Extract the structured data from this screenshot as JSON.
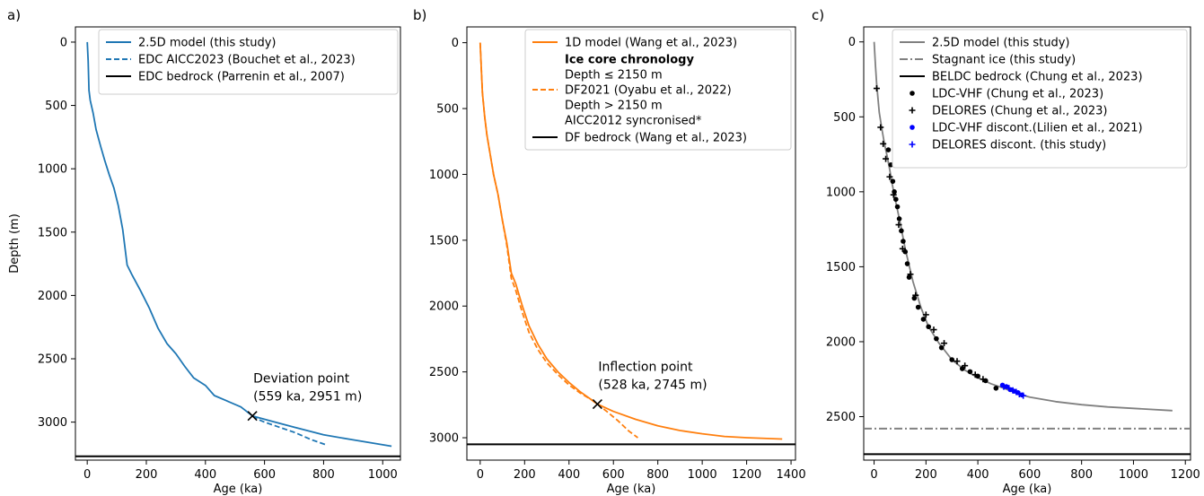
{
  "figure": {
    "colors": {
      "blue": "#1f77b4",
      "orange": "#ff7f0e",
      "gray": "#808080",
      "black": "#000000",
      "pure_blue": "#0000ff"
    }
  },
  "chart_data": [
    {
      "panel": "a)",
      "type": "line",
      "xlabel": "Age (ka)",
      "ylabel": "Depth (m)",
      "xlim": [
        -40,
        1060
      ],
      "ylim": [
        3300,
        -120
      ],
      "xticks": [
        0,
        200,
        400,
        600,
        800,
        1000
      ],
      "yticks": [
        0,
        500,
        1000,
        1500,
        2000,
        2500,
        3000
      ],
      "legend_position": "top-right",
      "series": [
        {
          "name": "2.5D model (this study)",
          "style": "solid",
          "color": "#1f77b4",
          "x": [
            0,
            3,
            6,
            10,
            20,
            30,
            45,
            60,
            75,
            90,
            105,
            120,
            135,
            150,
            180,
            210,
            240,
            270,
            300,
            330,
            360,
            400,
            430,
            470,
            520,
            559,
            620,
            700,
            800,
            900,
            1030
          ],
          "y": [
            0,
            150,
            380,
            460,
            560,
            690,
            820,
            940,
            1050,
            1150,
            1290,
            1480,
            1760,
            1830,
            1960,
            2100,
            2260,
            2380,
            2460,
            2560,
            2650,
            2710,
            2790,
            2830,
            2880,
            2951,
            2990,
            3040,
            3100,
            3140,
            3190
          ]
        },
        {
          "name": "EDC AICC2023 (Bouchet et al., 2023)",
          "style": "dashed",
          "color": "#1f77b4",
          "x": [
            559,
            580,
            600,
            650,
            700,
            760,
            810
          ],
          "y": [
            2951,
            2980,
            3000,
            3040,
            3080,
            3140,
            3180
          ]
        },
        {
          "name": "EDC bedrock (Parrenin et al., 2007)",
          "style": "hline",
          "color": "#000000",
          "y": 3270
        }
      ],
      "marker": {
        "x": 559,
        "y": 2951,
        "symbol": "x"
      },
      "annotation": {
        "line1": "Deviation point",
        "line2": "(559 ka, 2951 m)"
      }
    },
    {
      "panel": "b)",
      "type": "line",
      "xlabel": "Age (ka)",
      "ylabel": "",
      "xlim": [
        -60,
        1420
      ],
      "ylim": [
        3170,
        -120
      ],
      "xticks": [
        0,
        200,
        400,
        600,
        800,
        1000,
        1200,
        1400
      ],
      "yticks": [
        0,
        500,
        1000,
        1500,
        2000,
        2500,
        3000
      ],
      "legend_position": "top-right",
      "legend_heading": "Ice core chronology",
      "legend_text": [
        "Depth ≤ 2150 m",
        "Depth > 2150 m",
        "AICC2012 syncronised*"
      ],
      "series": [
        {
          "name": "1D model (Wang et al., 2023)",
          "style": "solid",
          "color": "#ff7f0e",
          "x": [
            0,
            5,
            10,
            20,
            30,
            45,
            60,
            80,
            100,
            120,
            140,
            160,
            190,
            220,
            260,
            300,
            350,
            400,
            450,
            500,
            528,
            600,
            700,
            800,
            900,
            1000,
            1100,
            1200,
            1360
          ],
          "y": [
            0,
            200,
            380,
            560,
            700,
            850,
            1000,
            1150,
            1350,
            1520,
            1750,
            1830,
            2000,
            2150,
            2290,
            2400,
            2500,
            2580,
            2650,
            2710,
            2745,
            2800,
            2860,
            2910,
            2945,
            2970,
            2990,
            3000,
            3010
          ]
        },
        {
          "name": "DF2021  (Oyabu et al., 2022)",
          "style": "dashed",
          "color": "#ff7f0e",
          "x": [
            0,
            5,
            10,
            20,
            30,
            45,
            60,
            80,
            100,
            120,
            140,
            160,
            190,
            220,
            260,
            300,
            350,
            400,
            450,
            500,
            528,
            570,
            620,
            670,
            710
          ],
          "y": [
            0,
            200,
            380,
            560,
            700,
            850,
            1000,
            1150,
            1350,
            1540,
            1790,
            1880,
            2050,
            2200,
            2330,
            2430,
            2520,
            2600,
            2660,
            2710,
            2745,
            2800,
            2870,
            2950,
            3000
          ]
        },
        {
          "name": "DF bedrock (Wang et al., 2023)",
          "style": "hline",
          "color": "#000000",
          "y": 3050
        }
      ],
      "marker": {
        "x": 528,
        "y": 2745,
        "symbol": "x"
      },
      "annotation": {
        "line1": "Inflection point",
        "line2": "(528 ka, 2745 m)"
      }
    },
    {
      "panel": "c)",
      "type": "line",
      "xlabel": "Age (ka)",
      "ylabel": "",
      "xlim": [
        -40,
        1220
      ],
      "ylim": [
        2790,
        -100
      ],
      "xticks": [
        0,
        200,
        400,
        600,
        800,
        1000,
        1200
      ],
      "yticks": [
        0,
        500,
        1000,
        1500,
        2000,
        2500
      ],
      "legend_position": "top-right",
      "series": [
        {
          "name": "2.5D model (this study)",
          "style": "solid",
          "color": "#808080",
          "x": [
            0,
            5,
            10,
            20,
            30,
            40,
            50,
            60,
            70,
            80,
            100,
            120,
            150,
            180,
            210,
            250,
            300,
            350,
            400,
            450,
            500,
            560,
            600,
            700,
            800,
            900,
            1000,
            1150
          ],
          "y": [
            0,
            150,
            280,
            470,
            580,
            680,
            760,
            850,
            950,
            1040,
            1200,
            1380,
            1600,
            1770,
            1900,
            2010,
            2120,
            2190,
            2240,
            2280,
            2310,
            2350,
            2370,
            2400,
            2420,
            2435,
            2445,
            2460
          ]
        },
        {
          "name": "Stagnant ice (this study)",
          "style": "dashdot",
          "color": "#808080",
          "y": 2580
        },
        {
          "name": "BELDC bedrock (Chung et al., 2023)",
          "style": "hline",
          "color": "#000000",
          "y": 2750
        },
        {
          "name": "LDC-VHF (Chung et al., 2023)",
          "style": "scatter",
          "marker": "dot",
          "color": "#000000",
          "x": [
            55,
            65,
            72,
            78,
            84,
            90,
            97,
            105,
            112,
            120,
            128,
            135,
            155,
            170,
            190,
            210,
            240,
            260,
            300,
            340,
            370,
            400,
            430,
            470
          ],
          "y": [
            720,
            820,
            930,
            1000,
            1050,
            1100,
            1180,
            1260,
            1330,
            1400,
            1480,
            1570,
            1710,
            1770,
            1850,
            1900,
            1980,
            2040,
            2120,
            2180,
            2200,
            2230,
            2260,
            2310
          ]
        },
        {
          "name": "DELORES (Chung et al., 2023)",
          "style": "scatter",
          "marker": "plus",
          "color": "#000000",
          "x": [
            10,
            25,
            35,
            45,
            60,
            75,
            95,
            110,
            140,
            160,
            200,
            230,
            270,
            320,
            350,
            390,
            420
          ],
          "y": [
            310,
            570,
            680,
            780,
            900,
            1020,
            1220,
            1380,
            1550,
            1690,
            1820,
            1920,
            2010,
            2130,
            2160,
            2220,
            2250
          ]
        },
        {
          "name": "LDC-VHF discont.(Lilien et al., 2021)",
          "style": "scatter",
          "marker": "dot",
          "color": "#0000ff",
          "x": [
            495,
            510,
            525,
            540,
            555,
            570
          ],
          "y": [
            2290,
            2300,
            2320,
            2330,
            2340,
            2355
          ]
        },
        {
          "name": "DELORES discont. (this study)",
          "style": "scatter",
          "marker": "plus",
          "color": "#0000ff",
          "x": [
            500,
            520,
            535,
            548,
            560,
            575
          ],
          "y": [
            2300,
            2310,
            2325,
            2335,
            2350,
            2360
          ]
        }
      ]
    }
  ]
}
